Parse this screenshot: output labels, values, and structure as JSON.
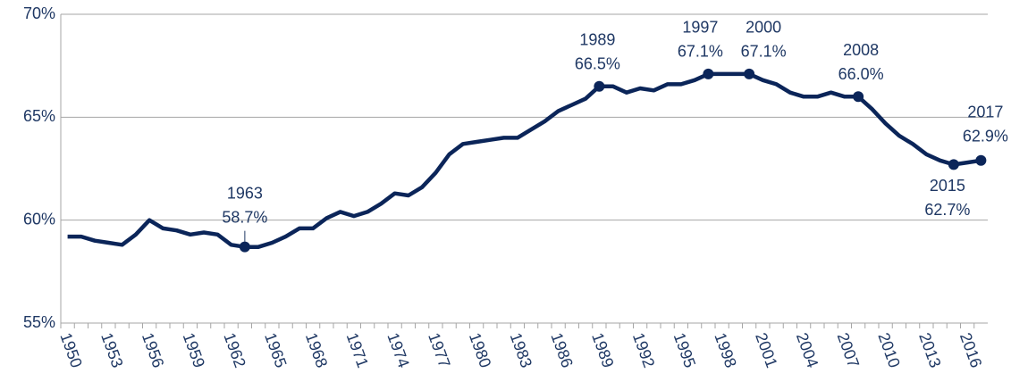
{
  "chart_data": {
    "type": "line",
    "x": [
      1950,
      1951,
      1952,
      1953,
      1954,
      1955,
      1956,
      1957,
      1958,
      1959,
      1960,
      1961,
      1962,
      1963,
      1964,
      1965,
      1966,
      1967,
      1968,
      1969,
      1970,
      1971,
      1972,
      1973,
      1974,
      1975,
      1976,
      1977,
      1978,
      1979,
      1980,
      1981,
      1982,
      1983,
      1984,
      1985,
      1986,
      1987,
      1988,
      1989,
      1990,
      1991,
      1992,
      1993,
      1994,
      1995,
      1996,
      1997,
      1998,
      1999,
      2000,
      2001,
      2002,
      2003,
      2004,
      2005,
      2006,
      2007,
      2008,
      2009,
      2010,
      2011,
      2012,
      2013,
      2014,
      2015,
      2016,
      2017
    ],
    "series": [
      {
        "color": "#0b2559",
        "values": [
          59.2,
          59.2,
          59.0,
          58.9,
          58.8,
          59.3,
          60.0,
          59.6,
          59.5,
          59.3,
          59.4,
          59.3,
          58.8,
          58.7,
          58.7,
          58.9,
          59.2,
          59.6,
          59.6,
          60.1,
          60.4,
          60.2,
          60.4,
          60.8,
          61.3,
          61.2,
          61.6,
          62.3,
          63.2,
          63.7,
          63.8,
          63.9,
          64.0,
          64.0,
          64.4,
          64.8,
          65.3,
          65.6,
          65.9,
          66.5,
          66.5,
          66.2,
          66.4,
          66.3,
          66.6,
          66.6,
          66.8,
          67.1,
          67.1,
          67.1,
          67.1,
          66.8,
          66.6,
          66.2,
          66.0,
          66.0,
          66.2,
          66.0,
          66.0,
          65.4,
          64.7,
          64.1,
          63.7,
          63.2,
          62.9,
          62.7,
          62.8,
          62.9
        ]
      }
    ],
    "xlim": [
      1949.5,
      2017.5
    ],
    "xticks": [
      1950,
      1953,
      1956,
      1959,
      1962,
      1965,
      1968,
      1971,
      1974,
      1977,
      1980,
      1983,
      1986,
      1989,
      1992,
      1995,
      1998,
      2001,
      2004,
      2007,
      2010,
      2013,
      2016
    ],
    "ylim": [
      55,
      70
    ],
    "yticks": [
      {
        "value": 55,
        "label": "55%"
      },
      {
        "value": 60,
        "label": "60%"
      },
      {
        "value": 65,
        "label": "65%"
      },
      {
        "value": 70,
        "label": "70%"
      }
    ],
    "grid": true,
    "annotations": [
      {
        "x": 1963,
        "y": 58.7,
        "y_label": "58.7%"
      },
      {
        "x": 1989,
        "y": 66.5,
        "y_label": "66.5%"
      },
      {
        "x": 1997,
        "y": 67.1,
        "y_label": "67.1%"
      },
      {
        "x": 2000,
        "y": 67.1,
        "y_label": "67.1%"
      },
      {
        "x": 2008,
        "y": 66.0,
        "y_label": "66.0%"
      },
      {
        "x": 2015,
        "y": 62.7,
        "y_label": "62.7%"
      },
      {
        "x": 2017,
        "y": 62.9,
        "y_label": "62.9%"
      }
    ]
  }
}
